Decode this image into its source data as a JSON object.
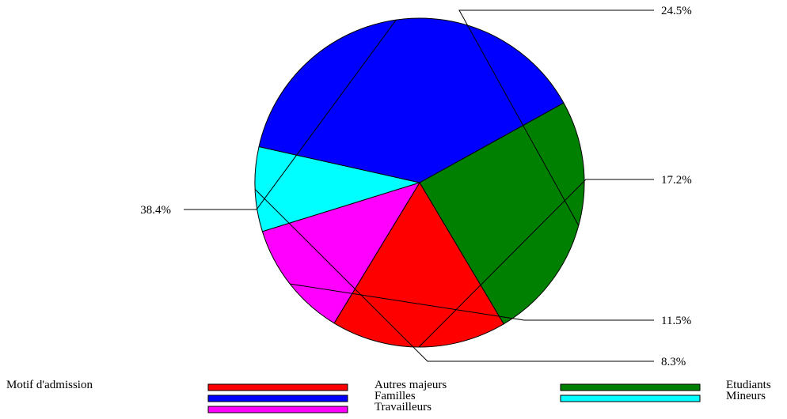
{
  "chart_data": {
    "type": "pie",
    "legend_title": "Motif d'admission",
    "legend_placement": "bottom",
    "slices": [
      {
        "name": "Etudiants",
        "value": 24.5,
        "label": "24.5%",
        "color": "#008000"
      },
      {
        "name": "Autres majeurs",
        "value": 17.2,
        "label": "17.2%",
        "color": "#ff0000"
      },
      {
        "name": "Travailleurs",
        "value": 11.5,
        "label": "11.5%",
        "color": "#ff00ff"
      },
      {
        "name": "Mineurs",
        "value": 8.3,
        "label": "8.3%",
        "color": "#00ffff"
      },
      {
        "name": "Familles",
        "value": 38.4,
        "label": "38.4%",
        "color": "#0000ff"
      }
    ],
    "legend_order": [
      "Autres majeurs",
      "Etudiants",
      "Familles",
      "Mineurs",
      "Travailleurs"
    ]
  }
}
